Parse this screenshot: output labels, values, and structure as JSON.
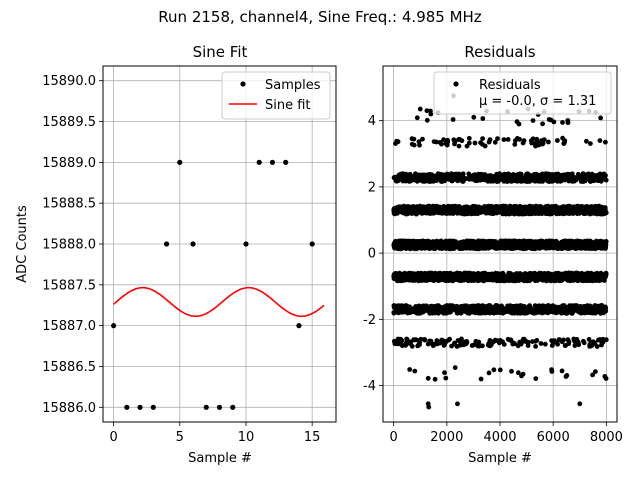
{
  "figure": {
    "suptitle": "Run 2158, channel4, Sine Freq.: 4.985 MHz"
  },
  "chart_data": [
    {
      "type": "scatter",
      "title": "Sine Fit",
      "xlabel": "Sample #",
      "ylabel": "ADC Counts",
      "xlim": [
        -0.8,
        16.8
      ],
      "ylim": [
        15885.82,
        15890.18
      ],
      "xticks": [
        0,
        5,
        10,
        15
      ],
      "yticks": [
        15886.0,
        15886.5,
        15887.0,
        15887.5,
        15888.0,
        15888.5,
        15889.0,
        15889.5,
        15890.0
      ],
      "ytick_labels": [
        "15886.0",
        "15886.5",
        "15887.0",
        "15887.5",
        "15888.0",
        "15888.5",
        "15889.0",
        "15889.5",
        "15890.0"
      ],
      "grid": true,
      "legend_position": "top-right",
      "series": [
        {
          "name": "Samples",
          "kind": "points",
          "color": "#000000",
          "x": [
            0,
            1,
            2,
            3,
            4,
            5,
            6,
            7,
            8,
            9,
            10,
            11,
            12,
            13,
            14,
            15
          ],
          "y": [
            15887,
            15886,
            15886,
            15886,
            15888,
            15889,
            15888,
            15886,
            15886,
            15886,
            15888,
            15889,
            15889,
            15889,
            15887,
            15888
          ]
        },
        {
          "name": "Sine fit",
          "kind": "line",
          "color": "#ff0000",
          "model": {
            "offset": 15887.29,
            "amplitude": 0.175,
            "period_samples": 8.0,
            "phase_peak_x": 2.2,
            "x_start": 0,
            "x_end": 15.9
          }
        }
      ]
    },
    {
      "type": "scatter",
      "title": "Residuals",
      "xlabel": "Sample #",
      "ylabel": "",
      "xlim": [
        -400,
        8400
      ],
      "ylim": [
        -5.1,
        5.65
      ],
      "xticks": [
        0,
        2000,
        4000,
        6000,
        8000
      ],
      "yticks": [
        -4,
        -2,
        0,
        2,
        4
      ],
      "grid": true,
      "legend_position": "top-right",
      "legend": {
        "name": "Residuals",
        "stats": "μ = -0.0, σ = 1.31"
      },
      "series": [
        {
          "name": "Residuals",
          "color": "#000000",
          "x_range": [
            0,
            8000
          ],
          "bands": [
            {
              "center": 4.1,
              "spread": 0.25,
              "count": 25
            },
            {
              "center": 3.35,
              "spread": 0.12,
              "count": 70
            },
            {
              "center": 2.28,
              "spread": 0.12,
              "count": 600
            },
            {
              "center": 1.3,
              "spread": 0.12,
              "count": 1000
            },
            {
              "center": 0.25,
              "spread": 0.12,
              "count": 1200
            },
            {
              "center": -0.72,
              "spread": 0.12,
              "count": 1100
            },
            {
              "center": -1.7,
              "spread": 0.12,
              "count": 700
            },
            {
              "center": -2.7,
              "spread": 0.12,
              "count": 160
            },
            {
              "center": -3.65,
              "spread": 0.2,
              "count": 25
            }
          ],
          "outliers": [
            {
              "x": 1300,
              "y": -4.55
            },
            {
              "x": 1320,
              "y": -4.65
            },
            {
              "x": 2400,
              "y": -4.55
            },
            {
              "x": 7000,
              "y": -4.55
            },
            {
              "x": 2250,
              "y": 4.75
            },
            {
              "x": 1000,
              "y": 4.35
            },
            {
              "x": 1250,
              "y": 4.3
            },
            {
              "x": 1400,
              "y": 4.2
            },
            {
              "x": 7600,
              "y": 4.25
            }
          ]
        }
      ]
    }
  ],
  "legend_left": {
    "samples_label": "Samples",
    "fit_label": "Sine fit"
  }
}
